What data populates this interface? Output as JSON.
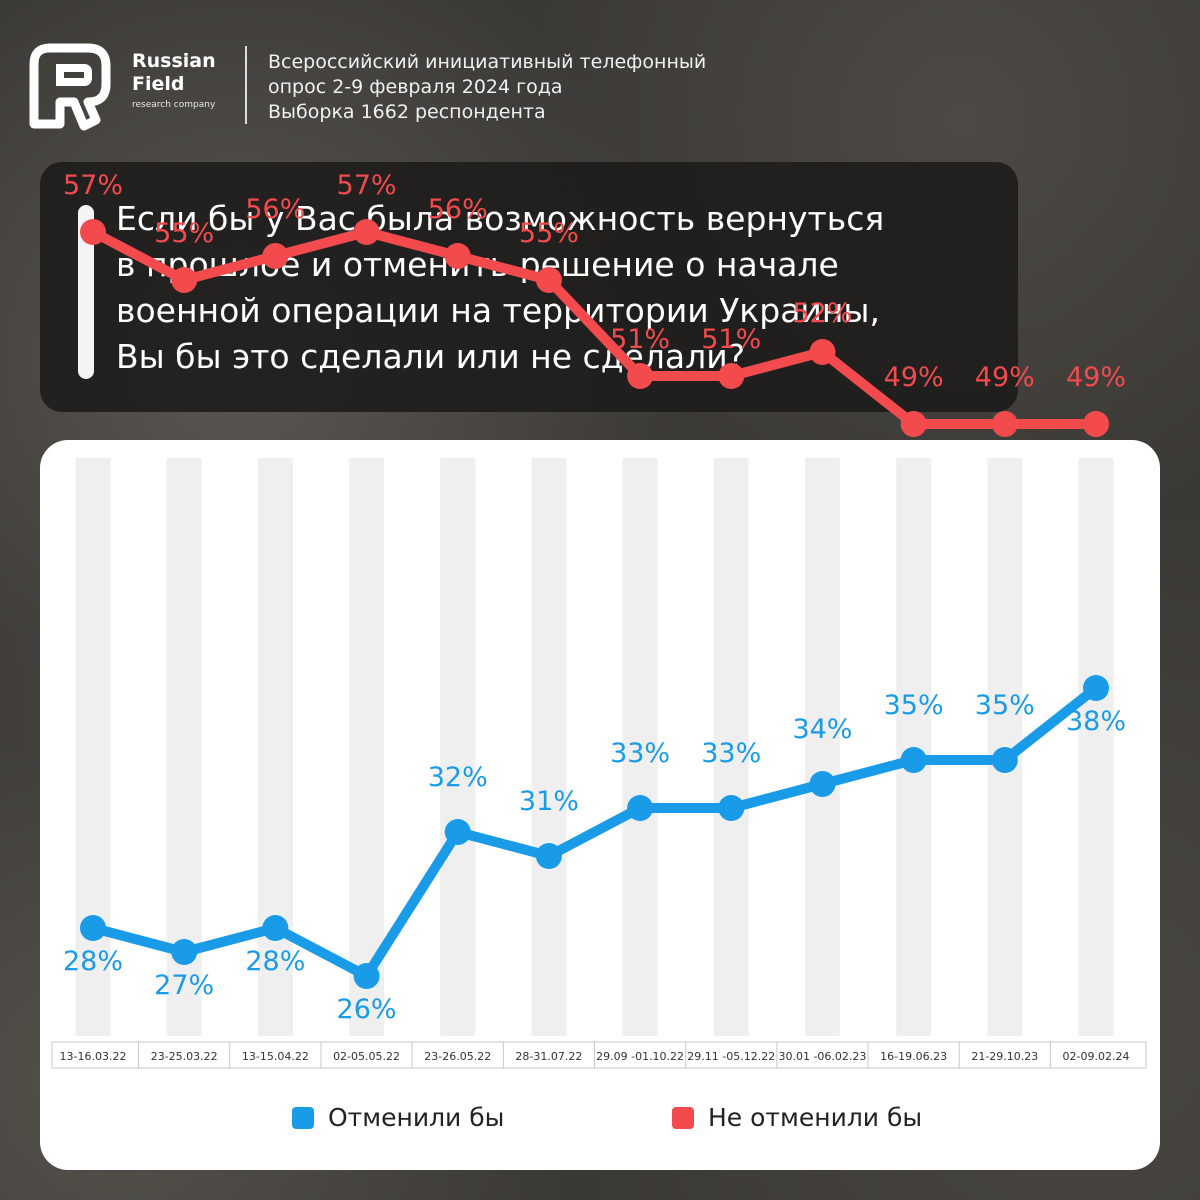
{
  "brand": {
    "line1": "Russian",
    "line2": "Field",
    "line3": "research company"
  },
  "survey": {
    "line1": "Всероссийский инициативный телефонный",
    "line2": "опрос 2-9 февраля 2024 года",
    "line3": "Выборка 1662 респондента"
  },
  "question": {
    "line1": "Если бы у Вас была возможность вернуться",
    "line2": "в прошлое и отменить решение о начале",
    "line3": "военной операции на территории Украины,",
    "line4": "Вы бы это сделали или не сделали?"
  },
  "colors": {
    "blue": "#1a9be8",
    "red": "#f24a4d"
  },
  "chart_data": {
    "type": "line",
    "categories": [
      "13-16.03.22",
      "23-25.03.22",
      "13-15.04.22",
      "02-05.05.22",
      "23-26.05.22",
      "28-31.07.22",
      "29.09 -01.10.22",
      "29.11 -05.12.22",
      "30.01 -06.02.23",
      "16-19.06.23",
      "21-29.10.23",
      "02-09.02.24"
    ],
    "series": [
      {
        "name": "Отменили бы",
        "color": "#1a9be8",
        "values": [
          28,
          27,
          28,
          26,
          32,
          31,
          33,
          33,
          34,
          35,
          35,
          38
        ],
        "labels": [
          "28%",
          "27%",
          "28%",
          "26%",
          "32%",
          "31%",
          "33%",
          "33%",
          "34%",
          "35%",
          "35%",
          "38%"
        ]
      },
      {
        "name": "Не отменили бы",
        "color": "#f24a4d",
        "values": [
          57,
          55,
          56,
          57,
          56,
          55,
          51,
          51,
          52,
          49,
          49,
          49
        ],
        "labels": [
          "57%",
          "55%",
          "56%",
          "57%",
          "56%",
          "55%",
          "51%",
          "51%",
          "52%",
          "49%",
          "49%",
          "49%"
        ]
      }
    ]
  }
}
